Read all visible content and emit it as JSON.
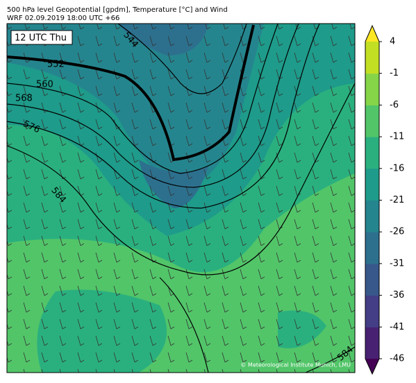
{
  "header": {
    "title": "500 hPa level Geopotential [gpdm], Temperature [°C] and Wind",
    "subtitle": "WRF 02.09.2019 18:00 UTC +66"
  },
  "map": {
    "time_label": "12 UTC Thu",
    "credit": "© Meteorological Institute Munich, LMU",
    "contour_labels": [
      "544",
      "552",
      "560",
      "568",
      "576",
      "584",
      "584"
    ]
  },
  "colorbar": {
    "lim": [
      -46,
      4
    ],
    "ticks": [
      4,
      -1,
      -6,
      -11,
      -16,
      -21,
      -26,
      -31,
      -36,
      -41,
      -46
    ],
    "colors": [
      "#482173",
      "#433e85",
      "#38588c",
      "#2d708e",
      "#25858e",
      "#1e9b8a",
      "#2ab07f",
      "#52c569",
      "#86d549",
      "#c2df23"
    ],
    "under": "#440154",
    "over": "#fde725"
  }
}
